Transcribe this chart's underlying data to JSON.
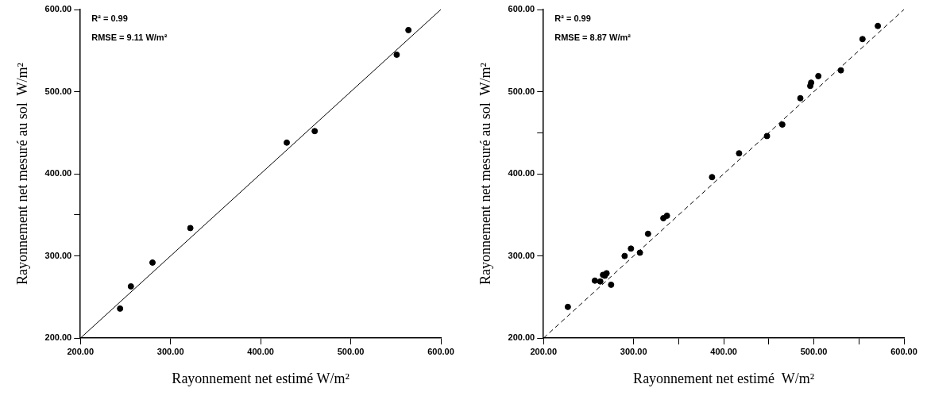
{
  "chart_data": [
    {
      "type": "scatter",
      "xlabel": "Rayonnement net estimé W/m²",
      "ylabel": "Rayonnement net mesuré au sol  W/m²",
      "annotations": [
        "R² = 0.99",
        "RMSE = 9.11 W/m²"
      ],
      "xlim": [
        200,
        600
      ],
      "ylim": [
        200,
        600
      ],
      "xticks": [
        {
          "value": 200,
          "label": "200.00"
        },
        {
          "value": 300,
          "label": "300.00"
        },
        {
          "value": 400,
          "label": "400.00"
        },
        {
          "value": 500,
          "label": "500.00"
        },
        {
          "value": 600,
          "label": "600.00"
        }
      ],
      "yticks": [
        {
          "value": 200,
          "label": "200.00"
        },
        {
          "value": 300,
          "label": "300.00"
        },
        {
          "value": 350,
          "label": null
        },
        {
          "value": 400,
          "label": "400.00"
        },
        {
          "value": 500,
          "label": "500.00"
        },
        {
          "value": 600,
          "label": "600.00"
        }
      ],
      "grid": false,
      "legend": false,
      "series": [
        {
          "color": "#000000",
          "marker": "circle",
          "x": [
            244,
            256,
            280,
            322,
            429,
            460,
            551,
            564
          ],
          "values": [
            236,
            263,
            292,
            334,
            438,
            452,
            545,
            575
          ]
        },
        {
          "type": "line",
          "color": "#000000",
          "marker": "none",
          "line_style": "solid",
          "x": [
            200,
            600
          ],
          "values": [
            200,
            600
          ]
        }
      ]
    },
    {
      "type": "scatter",
      "xlabel": "Rayonnement net estimé  W/m²",
      "ylabel": "Rayonnement net mesuré au sol  W/m²",
      "annotations": [
        "R² = 0.99",
        "RMSE = 8.87 W/m²"
      ],
      "xlim": [
        200,
        600
      ],
      "ylim": [
        200,
        600
      ],
      "xticks": [
        {
          "value": 200,
          "label": "200.00"
        },
        {
          "value": 300,
          "label": "300.00"
        },
        {
          "value": 350,
          "label": null
        },
        {
          "value": 400,
          "label": "400.00"
        },
        {
          "value": 450,
          "label": null
        },
        {
          "value": 500,
          "label": "500.00"
        },
        {
          "value": 550,
          "label": null
        },
        {
          "value": 600,
          "label": "600.00"
        }
      ],
      "yticks": [
        {
          "value": 200,
          "label": "200.00"
        },
        {
          "value": 300,
          "label": "300.00"
        },
        {
          "value": 400,
          "label": "400.00"
        },
        {
          "value": 450,
          "label": null
        },
        {
          "value": 500,
          "label": "500.00"
        },
        {
          "value": 600,
          "label": "600.00"
        }
      ],
      "grid": false,
      "legend": false,
      "series": [
        {
          "color": "#000000",
          "marker": "circle",
          "x": [
            227,
            257,
            263,
            266,
            268,
            270,
            275,
            290,
            297,
            307,
            316,
            333,
            337,
            387,
            417,
            448,
            465,
            485,
            496,
            497,
            505,
            530,
            554,
            571
          ],
          "values": [
            238,
            270,
            269,
            277,
            276,
            279,
            265,
            300,
            309,
            304,
            327,
            346,
            349,
            396,
            425,
            446,
            460,
            492,
            507,
            511,
            519,
            526,
            564,
            580
          ]
        },
        {
          "type": "line",
          "color": "#000000",
          "marker": "none",
          "line_style": "dashed",
          "x": [
            200,
            600
          ],
          "values": [
            200,
            600
          ]
        }
      ]
    }
  ]
}
